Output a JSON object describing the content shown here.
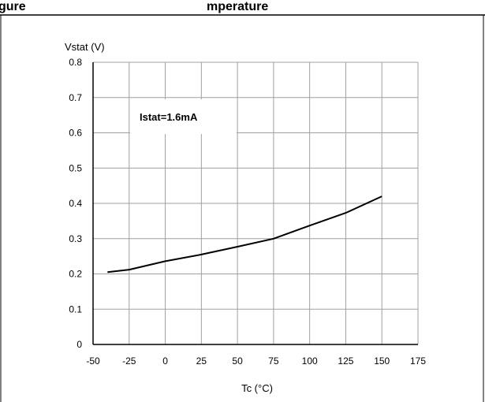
{
  "chart_data": {
    "type": "line",
    "title": "gure",
    "subtitle": "mperature",
    "ylabel": "Vstat (V)",
    "xlabel": "Tc (°C)",
    "annotation": "Istat=1.6mA",
    "xlim": [
      -50,
      175
    ],
    "ylim": [
      0,
      0.8
    ],
    "x_ticks": [
      -50,
      -25,
      0,
      25,
      50,
      75,
      100,
      125,
      150,
      175
    ],
    "y_ticks": [
      0,
      0.1,
      0.2,
      0.3,
      0.4,
      0.5,
      0.6,
      0.7,
      0.8
    ],
    "x_tick_labels": [
      "-50",
      "-25",
      "0",
      "25",
      "50",
      "75",
      "100",
      "125",
      "150",
      "175"
    ],
    "y_tick_labels": [
      "0",
      "0.1",
      "0.2",
      "0.3",
      "0.4",
      "0.5",
      "0.6",
      "0.7",
      "0.8"
    ],
    "grid": true,
    "series": [
      {
        "x": [
          -40,
          -25,
          0,
          25,
          50,
          75,
          100,
          125,
          150
        ],
        "y": [
          0.205,
          0.212,
          0.236,
          0.255,
          0.277,
          0.3,
          0.337,
          0.373,
          0.42
        ]
      }
    ],
    "colors": {
      "line": "#000000",
      "grid": "#a0a0a0",
      "frame": "#000000"
    }
  }
}
